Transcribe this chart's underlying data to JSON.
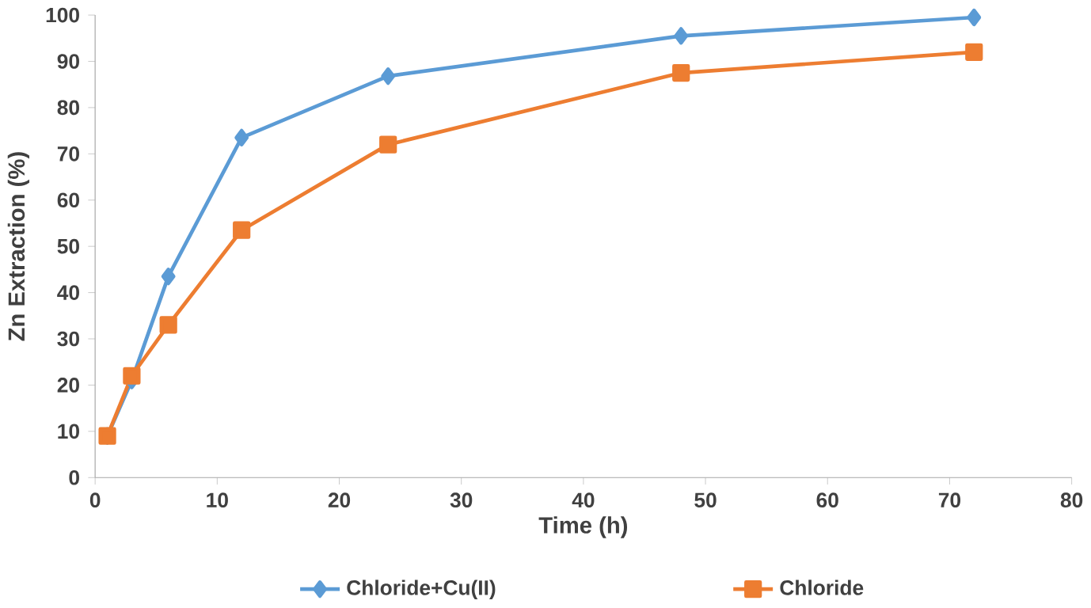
{
  "chart_data": {
    "type": "line",
    "xlabel": "Time (h)",
    "ylabel": "Zn Extraction (%)",
    "xlim": [
      0,
      80
    ],
    "xticks": [
      0,
      10,
      20,
      30,
      40,
      50,
      60,
      70,
      80
    ],
    "ylim": [
      0,
      100
    ],
    "yticks": [
      0,
      10,
      20,
      30,
      40,
      50,
      60,
      70,
      80,
      90,
      100
    ],
    "legend": "bottom",
    "grid": false,
    "line_style": "solid",
    "x": [
      1,
      3,
      6,
      12,
      24,
      48,
      72
    ],
    "series": [
      {
        "name": "Chloride+Cu(II)",
        "color": "#5b9bd5",
        "marker": "diamond",
        "values": [
          9,
          21,
          43.5,
          73.5,
          86.8,
          95.5,
          99.5
        ]
      },
      {
        "name": "Chloride",
        "color": "#ed7d31",
        "marker": "square",
        "values": [
          9,
          22,
          33,
          53.5,
          72,
          87.5,
          92
        ]
      }
    ]
  }
}
